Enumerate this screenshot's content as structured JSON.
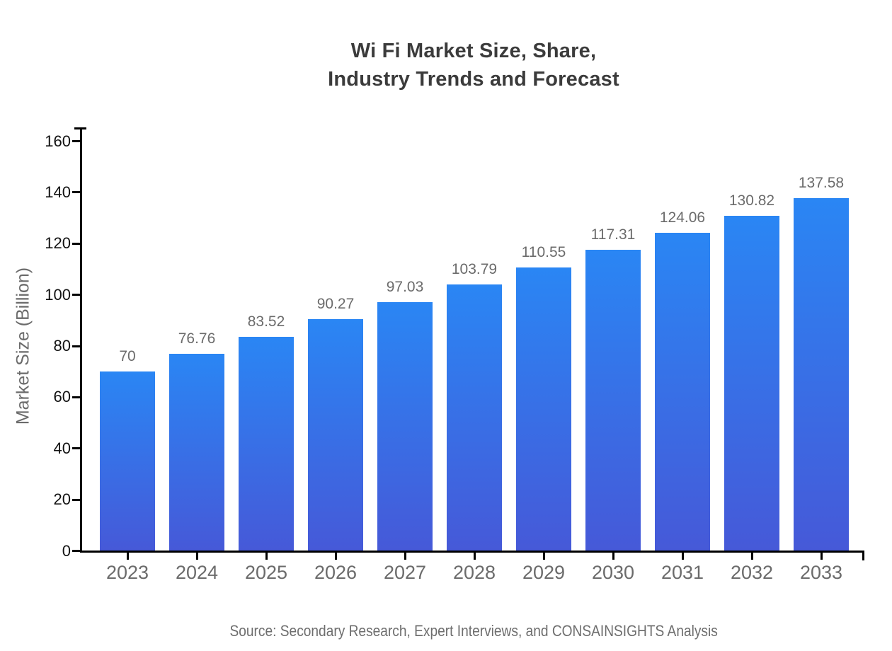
{
  "chart_data": {
    "type": "bar",
    "title_lines": [
      "Wi Fi Market Size, Share,",
      "Industry Trends and Forecast"
    ],
    "categories": [
      "2023",
      "2024",
      "2025",
      "2026",
      "2027",
      "2028",
      "2029",
      "2030",
      "2031",
      "2032",
      "2033"
    ],
    "values": [
      70,
      76.76,
      83.52,
      90.27,
      97.03,
      103.79,
      110.55,
      117.31,
      124.06,
      130.82,
      137.58
    ],
    "value_labels": [
      "70",
      "76.76",
      "83.52",
      "90.27",
      "97.03",
      "103.79",
      "110.55",
      "117.31",
      "124.06",
      "130.82",
      "137.58"
    ],
    "xlabel": "",
    "ylabel": "Market Size (Billion)",
    "ylim": [
      0,
      160
    ],
    "yticks": [
      0,
      20,
      40,
      60,
      80,
      100,
      120,
      140,
      160
    ],
    "grid": false,
    "legend": "none",
    "bar_gradient": {
      "top": "#2A86F4",
      "bottom": "#4659D8"
    },
    "source_note": "Source: Secondary Research, Expert Interviews, and CONSAINSIGHTS Analysis",
    "colors": {
      "title": "#3b3b3b",
      "axis": "#000000",
      "y_tick_label": "#111111",
      "x_tick_label": "#6b6b6b",
      "value_label": "#6b6b6b",
      "y_axis_label": "#6b6b6b",
      "source": "#6e6e6e",
      "background": "#ffffff"
    }
  }
}
